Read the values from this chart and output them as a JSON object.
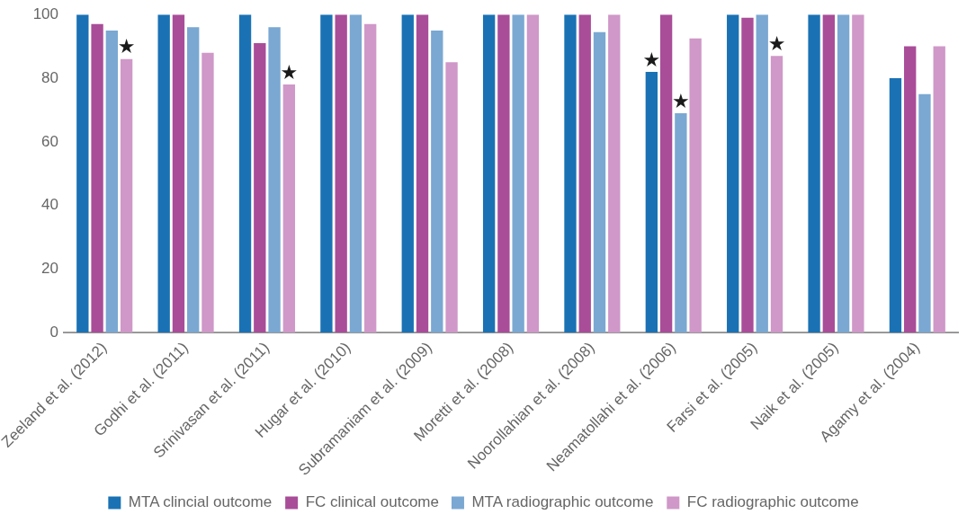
{
  "chart_data": {
    "type": "bar",
    "categories": [
      "Zeeland et al. (2012)",
      "Godhi et al. (2011)",
      "Srinivasan et al. (2011)",
      "Hugar et al. (2010)",
      "Subramaniam et al. (2009)",
      "Moretti et al. (2008)",
      "Noorollahian et al. (2008)",
      "Neamatollahi et al. (2006)",
      "Farsi et al. (2005)",
      "Naik et al. (2005)",
      "Agamy et al. (2004)"
    ],
    "series": [
      {
        "name": "MTA clincial outcome",
        "color": "#1a72b4",
        "values": [
          100,
          100,
          100,
          100,
          100,
          100,
          100,
          82,
          100,
          100,
          80
        ]
      },
      {
        "name": "FC clinical outcome",
        "color": "#a94d99",
        "values": [
          97,
          100,
          91,
          100,
          100,
          100,
          100,
          100,
          99,
          100,
          90
        ]
      },
      {
        "name": "MTA radiographic outcome",
        "color": "#7aa8d2",
        "values": [
          95,
          96,
          96,
          100,
          95,
          100,
          94.5,
          69,
          100,
          100,
          75
        ]
      },
      {
        "name": "FC radiographic outcome",
        "color": "#cf98c8",
        "values": [
          86,
          88,
          78,
          97,
          85,
          100,
          100,
          92.5,
          87,
          100,
          90
        ]
      }
    ],
    "ylim": [
      0,
      100
    ],
    "yticks": [
      0,
      20,
      40,
      60,
      80,
      100
    ],
    "grid": false,
    "legend": "bottom",
    "annotations": [
      {
        "text": "★",
        "x": "Zeeland et al. (2012)",
        "y": 86
      },
      {
        "text": "★",
        "x": "Srinivasan et al. (2011)",
        "y": 78
      },
      {
        "text": "★",
        "x": "Neamatollahi et al. (2006)",
        "y": 82
      },
      {
        "text": "★",
        "x": "Neamatollahi et al. (2006)",
        "y": 69
      },
      {
        "text": "★",
        "x": "Farsi et al. (2005)",
        "y": 87
      }
    ]
  }
}
